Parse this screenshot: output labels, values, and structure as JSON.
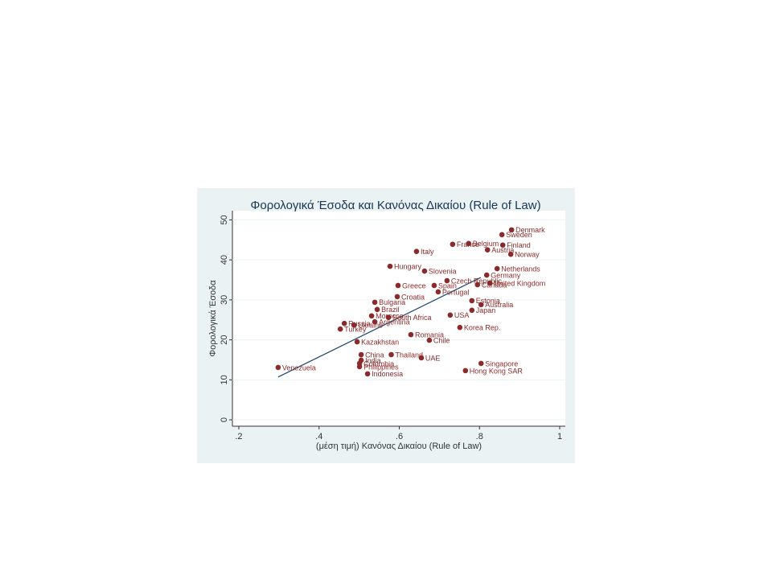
{
  "chart_data": {
    "type": "scatter",
    "title": "Φορολογικά Έσοδα και Κανόνας Δικαίου (Rule of Law)",
    "x_label": "(μέση τιμή) Κανόνας Δικαίου (Rule of Law)",
    "y_label": "Φορολογικά Έσοδα",
    "categories": [
      "Denmark",
      "Sweden",
      "Belgium",
      "France",
      "Finland",
      "Austria",
      "Norway",
      "Italy",
      "Hungary",
      "Slovenia",
      "Netherlands",
      "Germany",
      "Czech Republic",
      "Greece",
      "Spain",
      "United Kingdom",
      "Canada",
      "Portugal",
      "Croatia",
      "Bulgaria",
      "Estonia",
      "Australia",
      "Brazil",
      "Japan",
      "USA",
      "Morocco",
      "South Africa",
      "Argentina",
      "Russia",
      "Ukraine",
      "Turkey",
      "Korea Rep.",
      "Romania",
      "Chile",
      "Kazakhstan",
      "China",
      "Thailand",
      "UAE",
      "India",
      "Colombia",
      "Philippines",
      "Indonesia",
      "Venezuela",
      "Singapore",
      "Hong Kong SAR"
    ],
    "x": [
      0.88,
      0.856,
      0.773,
      0.733,
      0.858,
      0.82,
      0.878,
      0.643,
      0.577,
      0.663,
      0.844,
      0.818,
      0.719,
      0.597,
      0.687,
      0.826,
      0.795,
      0.697,
      0.595,
      0.539,
      0.781,
      0.804,
      0.545,
      0.781,
      0.727,
      0.531,
      0.573,
      0.539,
      0.463,
      0.487,
      0.453,
      0.751,
      0.629,
      0.675,
      0.495,
      0.505,
      0.58,
      0.655,
      0.505,
      0.501,
      0.501,
      0.521,
      0.298,
      0.804,
      0.765
    ],
    "values": [
      47.5,
      46.3,
      44.1,
      43.9,
      43.7,
      42.5,
      41.4,
      42.1,
      38.4,
      37.2,
      37.8,
      36.2,
      34.8,
      33.6,
      33.6,
      34.2,
      33.8,
      32.0,
      30.8,
      29.4,
      29.8,
      28.8,
      27.6,
      27.4,
      26.2,
      26.0,
      25.6,
      24.5,
      24.1,
      23.7,
      22.7,
      23.1,
      21.3,
      19.9,
      19.5,
      16.3,
      16.3,
      15.5,
      14.9,
      14.1,
      13.3,
      11.5,
      13.1,
      14.1,
      12.3
    ],
    "color": "#8b2a2a",
    "fit_line": {
      "x": [
        0.298,
        0.803
      ],
      "y": [
        10.7,
        35.6
      ],
      "color": "#1a476f"
    },
    "xlim": [
      0.184,
      1.014
    ],
    "ylim": [
      -1.6,
      52.3
    ],
    "xticks": [
      {
        "value": 0.2,
        "label": ".2"
      },
      {
        "value": 0.4,
        "label": ".4"
      },
      {
        "value": 0.6,
        "label": ".6"
      },
      {
        "value": 0.8,
        "label": ".8"
      },
      1
    ],
    "yticks": [
      0,
      10,
      20,
      30,
      40,
      50
    ],
    "grid": true
  }
}
